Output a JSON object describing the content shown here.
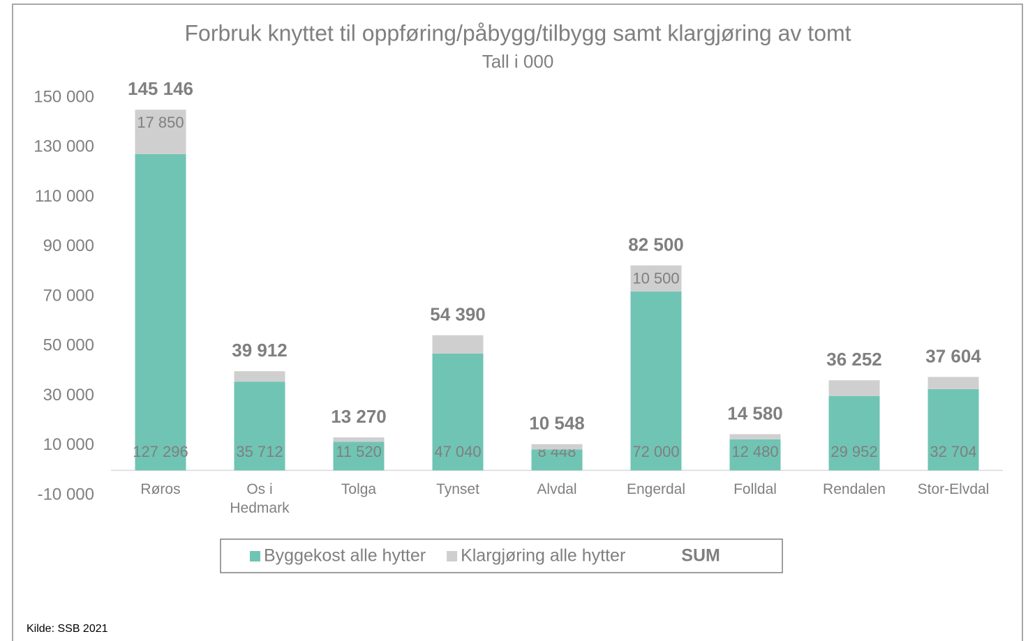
{
  "chart_data": {
    "type": "stacked-bar",
    "title": "Forbruk knyttet til oppføring/påbygg/tilbygg samt klargjøring av tomt",
    "subtitle": "Tall i 000",
    "categories": [
      "Røros",
      "Os i Hedmark",
      "Tolga",
      "Tynset",
      "Alvdal",
      "Engerdal",
      "Folldal",
      "Rendalen",
      "Stor-Elvdal"
    ],
    "series": [
      {
        "name": "Byggekost alle hytter",
        "color": "#70c4b4",
        "values": [
          127296,
          35712,
          11520,
          47040,
          8448,
          72000,
          12480,
          29952,
          32704
        ],
        "value_labels": [
          "127 296",
          "35 712",
          "11 520",
          "47 040",
          "8 448",
          "72 000",
          "12 480",
          "29 952",
          "32 704"
        ]
      },
      {
        "name": "Klargjøring alle hytter",
        "color": "#d0cfcf",
        "values": [
          17850,
          4200,
          1750,
          7350,
          2100,
          10500,
          2100,
          6300,
          4900
        ],
        "value_labels": [
          "17 850",
          null,
          null,
          null,
          null,
          "10 500",
          null,
          null,
          null
        ]
      },
      {
        "name": "SUM",
        "values": [
          145146,
          39912,
          13270,
          54390,
          10548,
          82500,
          14580,
          36252,
          37604
        ],
        "value_labels": [
          "145 146",
          "39 912",
          "13 270",
          "54 390",
          "10 548",
          "82 500",
          "14 580",
          "36 252",
          "37 604"
        ]
      }
    ],
    "ylim": [
      -10000,
      150000
    ],
    "yticks": [
      {
        "value": -10000,
        "label": "-10 000"
      },
      {
        "value": 10000,
        "label": "10 000"
      },
      {
        "value": 30000,
        "label": "30 000"
      },
      {
        "value": 50000,
        "label": "50 000"
      },
      {
        "value": 70000,
        "label": "70 000"
      },
      {
        "value": 90000,
        "label": "90 000"
      },
      {
        "value": 110000,
        "label": "110 000"
      },
      {
        "value": 130000,
        "label": "130 000"
      },
      {
        "value": 150000,
        "label": "150 000"
      }
    ],
    "legend": "bottom",
    "source": "Kilde: SSB 2021"
  }
}
